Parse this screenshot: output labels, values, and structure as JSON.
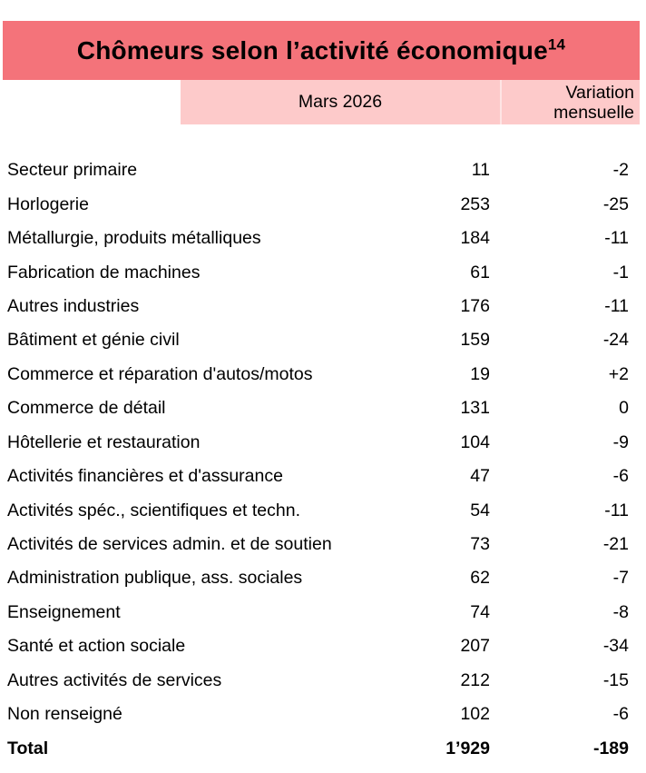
{
  "header": {
    "title": "Chômeurs selon l’activité économique",
    "title_superscript": "14",
    "banner_color": "#f4737a"
  },
  "column_headers": {
    "period": "Mars 2026",
    "variation_line1": "Variation",
    "variation_line2": "mensuelle",
    "band_color": "#fdcaca"
  },
  "rows": [
    {
      "label": "Secteur primaire",
      "value": "11",
      "variation": "-2"
    },
    {
      "label": "Horlogerie",
      "value": "253",
      "variation": "-25"
    },
    {
      "label": "Métallurgie, produits métalliques",
      "value": "184",
      "variation": "-11"
    },
    {
      "label": "Fabrication de machines",
      "value": "61",
      "variation": "-1"
    },
    {
      "label": "Autres industries",
      "value": "176",
      "variation": "-11"
    },
    {
      "label": "Bâtiment et génie civil",
      "value": "159",
      "variation": "-24"
    },
    {
      "label": "Commerce et réparation d'autos/motos",
      "value": "19",
      "variation": "+2"
    },
    {
      "label": "Commerce de détail",
      "value": "131",
      "variation": "0"
    },
    {
      "label": "Hôtellerie et restauration",
      "value": "104",
      "variation": "-9"
    },
    {
      "label": "Activités financières et d'assurance",
      "value": "47",
      "variation": "-6"
    },
    {
      "label": "Activités spéc., scientifiques et techn.",
      "value": "54",
      "variation": "-11"
    },
    {
      "label": "Activités de services admin. et de soutien",
      "value": "73",
      "variation": "-21"
    },
    {
      "label": "Administration publique, ass. sociales",
      "value": "62",
      "variation": "-7"
    },
    {
      "label": "Enseignement",
      "value": "74",
      "variation": "-8"
    },
    {
      "label": "Santé et action sociale",
      "value": "207",
      "variation": "-34"
    },
    {
      "label": "Autres activités de services",
      "value": "212",
      "variation": "-15"
    },
    {
      "label": "Non renseigné",
      "value": "102",
      "variation": "-6"
    }
  ],
  "total_row": {
    "label": "Total",
    "value": "1’929",
    "variation": "-189"
  }
}
